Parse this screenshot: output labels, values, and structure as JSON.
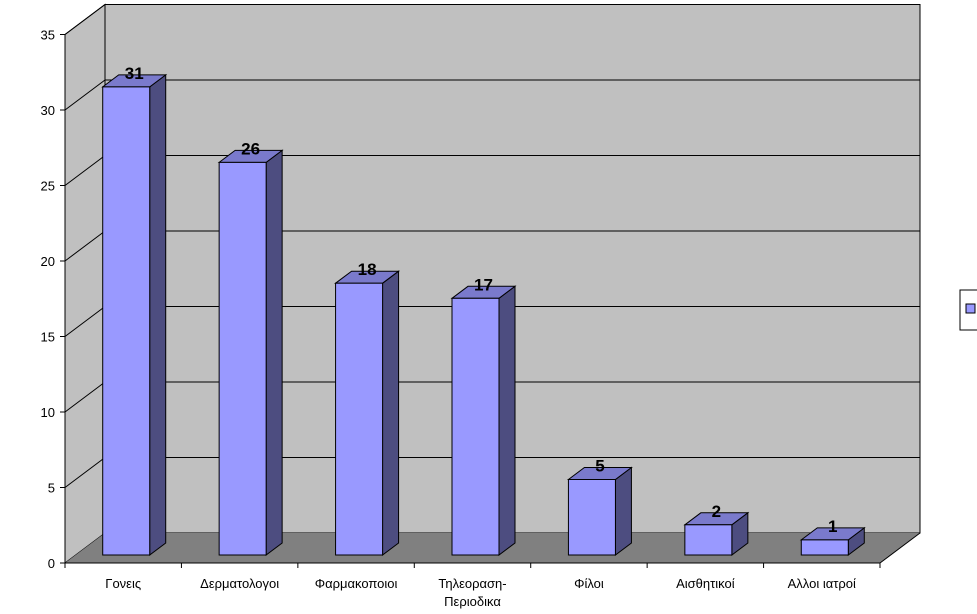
{
  "chart_data": {
    "type": "bar",
    "style": "3d-column",
    "title": "",
    "xlabel": "",
    "ylabel": "",
    "categories": [
      [
        "Γονεις"
      ],
      [
        "Δερματολογοι"
      ],
      [
        "Φαρμακοποιοι"
      ],
      [
        "Τηλεοραση-",
        "Περιοδικα"
      ],
      [
        "Φίλοι"
      ],
      [
        "Αισθητικοί"
      ],
      [
        "Αλλοι ιατροί"
      ]
    ],
    "values": [
      31,
      26,
      18,
      17,
      5,
      2,
      1
    ],
    "ylim": [
      0,
      35
    ],
    "yticks": [
      0,
      5,
      10,
      15,
      20,
      25,
      30,
      35
    ],
    "grid": true,
    "legend": "right",
    "colors": {
      "bar_front": "#9999ff",
      "bar_side": "#4d4d80",
      "bar_top": "#7a7acc",
      "wall": "#c0c0c0",
      "floor": "#808080",
      "gridline": "#000000"
    }
  }
}
